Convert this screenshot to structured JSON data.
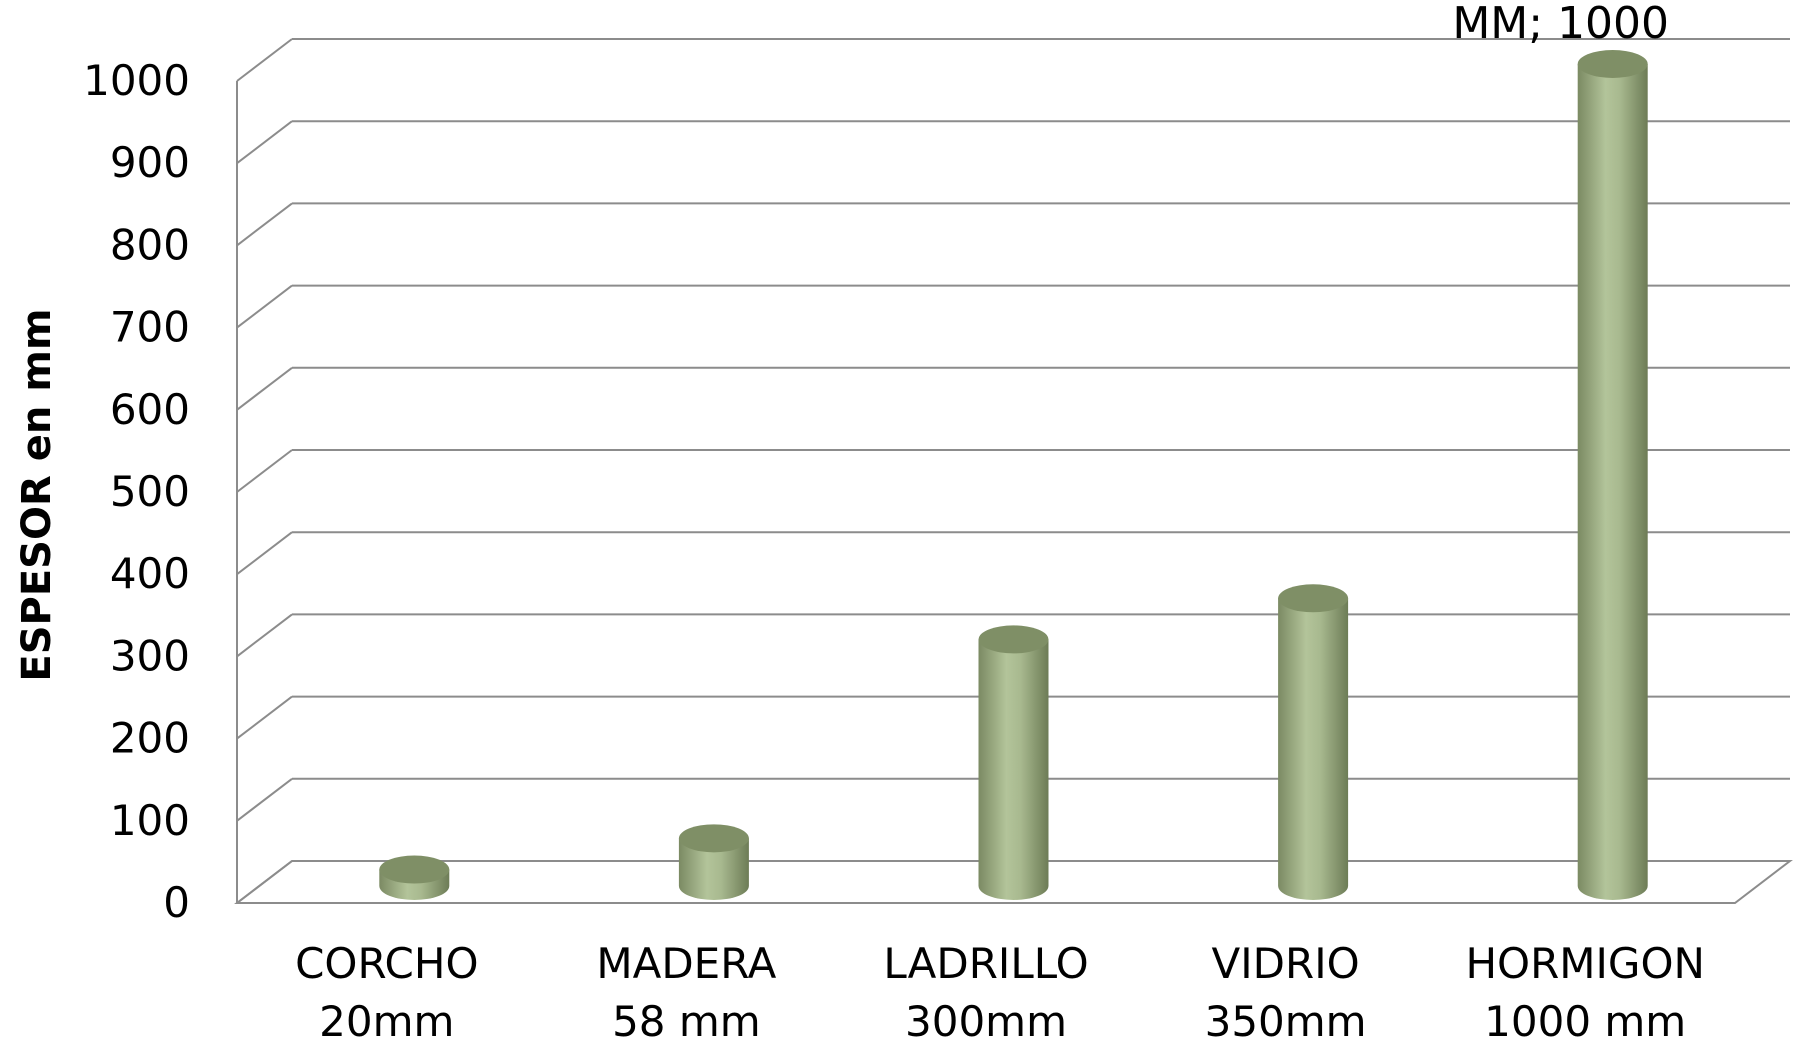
{
  "chart_data": {
    "type": "bar",
    "style": "3d-cylinder",
    "categories": [
      [
        "CORCHO",
        "20mm"
      ],
      [
        "MADERA",
        "58 mm"
      ],
      [
        "LADRILLO",
        "300mm"
      ],
      [
        "VIDRIO",
        "350mm"
      ],
      [
        "HORMIGON",
        "1000 mm"
      ]
    ],
    "values": [
      20,
      58,
      300,
      350,
      1000
    ],
    "ylabel": "ESPESOR en  mm",
    "xlabel": "",
    "ylim": [
      0,
      1000
    ],
    "yticks": [
      "0",
      "100",
      "200",
      "300",
      "400",
      "500",
      "600",
      "700",
      "800",
      "900",
      "1000"
    ],
    "data_labels": [
      {
        "index": 4,
        "text": "MM; 1000"
      }
    ],
    "grid": true,
    "legend": "none",
    "colors": {
      "bar": "#a3b38b",
      "bar_dark": "#6f7e58",
      "bar_top": "#7f8f66",
      "grid": "#8c8c8c"
    }
  }
}
